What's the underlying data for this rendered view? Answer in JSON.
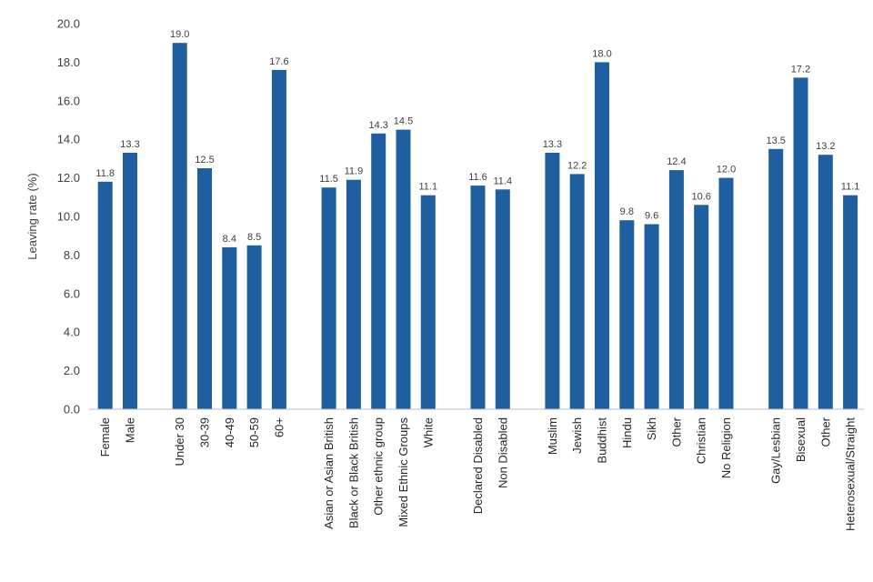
{
  "chart_data": {
    "type": "bar",
    "title": "",
    "xlabel": "",
    "ylabel": "Leaving rate (%)",
    "ylim": [
      0,
      20
    ],
    "ytick_step": 2,
    "yticks": [
      "0.0",
      "2.0",
      "4.0",
      "6.0",
      "8.0",
      "10.0",
      "12.0",
      "14.0",
      "16.0",
      "18.0",
      "20.0"
    ],
    "grid": false,
    "legend": "none",
    "bar_color": "#1f5f9f",
    "groups": [
      {
        "categories": [
          "Female",
          "Male"
        ],
        "values": [
          11.8,
          13.3
        ]
      },
      {
        "categories": [
          "Under 30",
          "30-39",
          "40-49",
          "50-59",
          "60+"
        ],
        "values": [
          19.0,
          12.5,
          8.4,
          8.5,
          17.6
        ]
      },
      {
        "categories": [
          "Asian or Asian British",
          "Black or Black British",
          "Other ethnic group",
          "Mixed Ethnic Groups",
          "White"
        ],
        "values": [
          11.5,
          11.9,
          14.3,
          14.5,
          11.1
        ]
      },
      {
        "categories": [
          "Declared Disabled",
          "Non Disabled"
        ],
        "values": [
          11.6,
          11.4
        ]
      },
      {
        "categories": [
          "Muslim",
          "Jewish",
          "Buddhist",
          "Hindu",
          "Sikh",
          "Other",
          "Christian",
          "No Religion"
        ],
        "values": [
          13.3,
          12.2,
          18.0,
          9.8,
          9.6,
          12.4,
          10.6,
          12.0
        ]
      },
      {
        "categories": [
          "Gay/Lesbian",
          "Bisexual",
          "Other",
          "Heterosexual/Straight"
        ],
        "values": [
          13.5,
          17.2,
          13.2,
          11.1
        ]
      }
    ]
  }
}
